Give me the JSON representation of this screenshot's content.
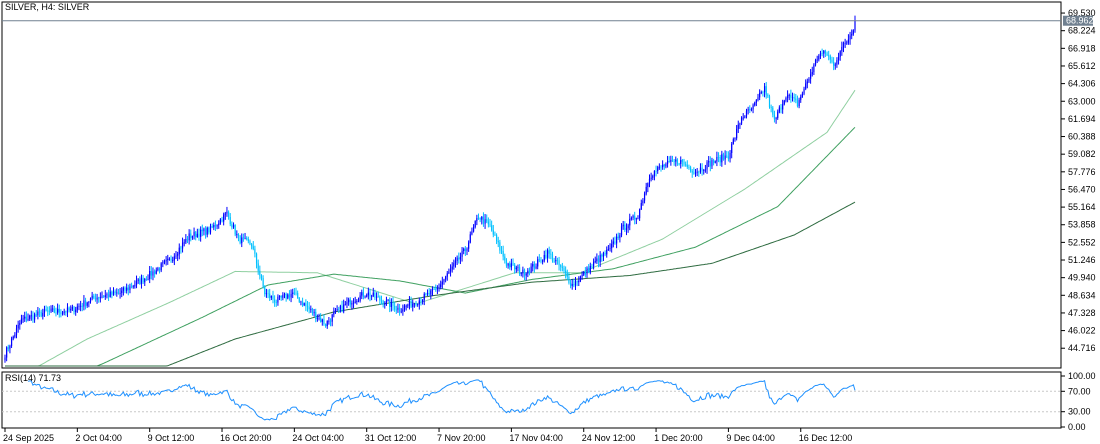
{
  "chart_data": {
    "type": "candlestick",
    "title": "SILVER, H4:  SILVER",
    "price_axis": {
      "min": 43.4,
      "max": 70.2,
      "ticks": [
        "69.530",
        "68.224",
        "66.918",
        "65.612",
        "64.306",
        "63.000",
        "61.694",
        "60.388",
        "59.082",
        "57.776",
        "56.470",
        "55.164",
        "53.858",
        "52.552",
        "51.246",
        "49.940",
        "48.634",
        "47.328",
        "46.022",
        "44.716"
      ],
      "current_price": "68.962",
      "current_value": 68.962
    },
    "time_axis": {
      "labels": [
        "24 Sep 2025",
        "2 Oct 04:00",
        "9 Oct 12:00",
        "16 Oct 20:00",
        "24 Oct 04:00",
        "31 Oct 12:00",
        "7 Nov 20:00",
        "17 Nov 04:00",
        "24 Nov 12:00",
        "1 Dec 20:00",
        "9 Dec 04:00",
        "16 Dec 12:00"
      ],
      "label_bar_index": [
        0,
        44,
        88,
        132,
        176,
        220,
        264,
        308,
        352,
        396,
        440,
        484
      ],
      "total_bars": 518
    },
    "price_keyframes": [
      [
        0,
        44.3
      ],
      [
        10,
        46.8
      ],
      [
        25,
        47.4
      ],
      [
        40,
        47.5
      ],
      [
        55,
        48.5
      ],
      [
        70,
        48.8
      ],
      [
        85,
        49.9
      ],
      [
        100,
        51.2
      ],
      [
        112,
        53.0
      ],
      [
        125,
        53.5
      ],
      [
        135,
        54.7
      ],
      [
        142,
        52.8
      ],
      [
        150,
        52.4
      ],
      [
        158,
        48.8
      ],
      [
        165,
        48.2
      ],
      [
        175,
        48.8
      ],
      [
        185,
        47.6
      ],
      [
        195,
        46.5
      ],
      [
        200,
        47.2
      ],
      [
        210,
        48.2
      ],
      [
        220,
        48.8
      ],
      [
        230,
        48.2
      ],
      [
        240,
        47.6
      ],
      [
        252,
        48.3
      ],
      [
        262,
        49.0
      ],
      [
        270,
        50.3
      ],
      [
        280,
        52.0
      ],
      [
        288,
        54.5
      ],
      [
        295,
        53.7
      ],
      [
        305,
        51.0
      ],
      [
        315,
        50.3
      ],
      [
        322,
        50.8
      ],
      [
        330,
        51.8
      ],
      [
        338,
        50.7
      ],
      [
        345,
        49.4
      ],
      [
        352,
        50.2
      ],
      [
        360,
        51.2
      ],
      [
        368,
        52.0
      ],
      [
        375,
        53.5
      ],
      [
        385,
        54.6
      ],
      [
        392,
        57.5
      ],
      [
        400,
        58.2
      ],
      [
        410,
        58.6
      ],
      [
        420,
        57.8
      ],
      [
        430,
        58.5
      ],
      [
        440,
        59.0
      ],
      [
        448,
        61.8
      ],
      [
        455,
        62.5
      ],
      [
        462,
        64.0
      ],
      [
        468,
        61.5
      ],
      [
        475,
        63.5
      ],
      [
        482,
        62.8
      ],
      [
        490,
        65.0
      ],
      [
        495,
        66.5
      ],
      [
        500,
        66.5
      ],
      [
        504,
        65.6
      ],
      [
        508,
        66.8
      ],
      [
        512,
        67.4
      ],
      [
        518,
        68.96
      ]
    ],
    "moving_averages": [
      {
        "color": "#8fcfa0",
        "anchors": [
          [
            0,
            42.0
          ],
          [
            50,
            45.4
          ],
          [
            100,
            48.1
          ],
          [
            140,
            50.4
          ],
          [
            190,
            50.3
          ],
          [
            250,
            48.0
          ],
          [
            310,
            50.3
          ],
          [
            350,
            50.3
          ],
          [
            400,
            52.8
          ],
          [
            450,
            56.5
          ],
          [
            500,
            60.7
          ],
          [
            518,
            64.0
          ]
        ]
      },
      {
        "color": "#3fa060",
        "anchors": [
          [
            0,
            40.6
          ],
          [
            60,
            43.6
          ],
          [
            120,
            47.0
          ],
          [
            160,
            49.4
          ],
          [
            200,
            50.2
          ],
          [
            240,
            49.7
          ],
          [
            280,
            48.8
          ],
          [
            320,
            49.8
          ],
          [
            370,
            50.6
          ],
          [
            420,
            52.2
          ],
          [
            470,
            55.2
          ],
          [
            518,
            61.2
          ]
        ]
      },
      {
        "color": "#2e6b40",
        "anchors": [
          [
            0,
            38.5
          ],
          [
            80,
            42.5
          ],
          [
            140,
            45.4
          ],
          [
            200,
            47.4
          ],
          [
            260,
            48.6
          ],
          [
            320,
            49.6
          ],
          [
            380,
            50.1
          ],
          [
            430,
            51.0
          ],
          [
            480,
            53.1
          ],
          [
            518,
            55.6
          ]
        ]
      }
    ],
    "rsi": {
      "label": "RSI(14) 71.73",
      "period": 14,
      "current": 71.73,
      "ticks": [
        "100.00",
        "70.00",
        "30.00",
        "0.00"
      ],
      "tick_values": [
        100,
        70,
        30,
        0
      ],
      "levels": [
        70,
        30
      ]
    },
    "colors": {
      "bull_candle": "#0000ff",
      "bear_candle": "#00c0ff",
      "rsi_line": "#1e90ff",
      "price_line": "#708090",
      "grid": "#c8c8c8"
    }
  }
}
